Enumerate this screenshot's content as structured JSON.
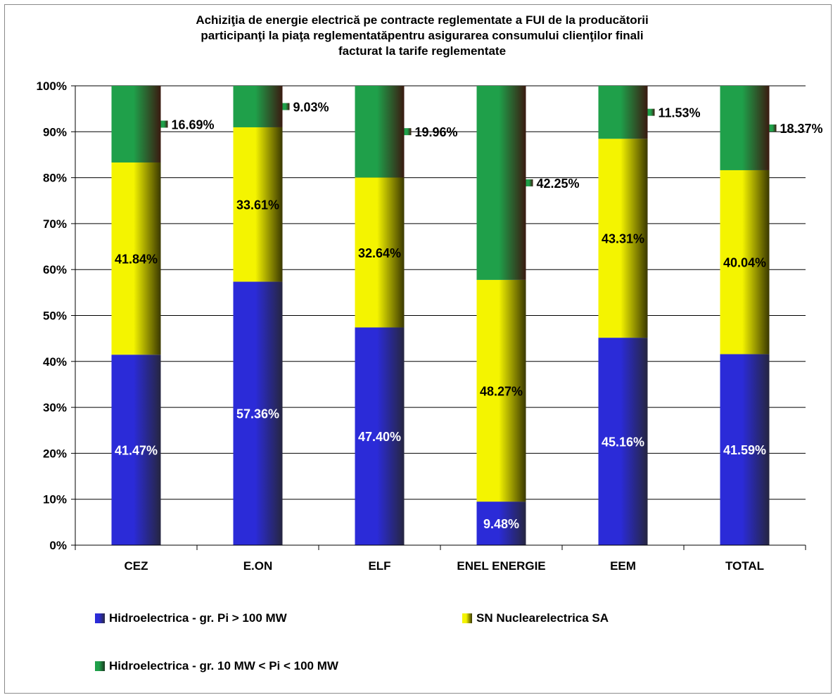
{
  "chart_data": {
    "type": "bar",
    "stacked": "percent",
    "title": "Achiziţia de energie electrică pe contracte reglementate a FUI  de la  producătorii participanţi la piaţa reglementatăpentru  asigurarea consumului clienţilor  finali facturat  la tarife reglementate",
    "title_lines": [
      "Achiziţia de energie electrică pe contracte reglementate a FUI  de la  producătorii",
      "participanţi la piaţa reglementatăpentru  asigurarea consumului clienţilor  finali",
      "facturat  la tarife reglementate"
    ],
    "categories": [
      "CEZ",
      "E.ON",
      "ELF",
      "ENEL ENERGIE",
      "EEM",
      "TOTAL"
    ],
    "ylim": [
      0,
      100
    ],
    "yticks": [
      "0%",
      "10%",
      "20%",
      "30%",
      "40%",
      "50%",
      "60%",
      "70%",
      "80%",
      "90%",
      "100%"
    ],
    "grid": true,
    "legend_position": "bottom",
    "series": [
      {
        "name": "Hidroelectrica - gr. Pi > 100 MW",
        "color": "#2b2bd8",
        "values": [
          41.47,
          57.36,
          47.4,
          9.48,
          45.16,
          41.59
        ],
        "labels": [
          "41.47%",
          "57.36%",
          "47.40%",
          "9.48%",
          "45.16%",
          "41.59%"
        ]
      },
      {
        "name": "SN Nuclearelectrica SA",
        "color": "#f4f400",
        "values": [
          41.84,
          33.61,
          32.64,
          48.27,
          43.31,
          40.04
        ],
        "labels": [
          "41.84%",
          "33.61%",
          "32.64%",
          "48.27%",
          "43.31%",
          "40.04%"
        ]
      },
      {
        "name": "Hidroelectrica - gr. 10 MW < Pi < 100 MW",
        "color": "#1fa04a",
        "values": [
          16.69,
          9.03,
          19.96,
          42.25,
          11.53,
          18.37
        ],
        "labels": [
          "16.69%",
          "9.03%",
          "19.96%",
          "42.25%",
          "11.53%",
          "18.37%"
        ]
      }
    ]
  }
}
